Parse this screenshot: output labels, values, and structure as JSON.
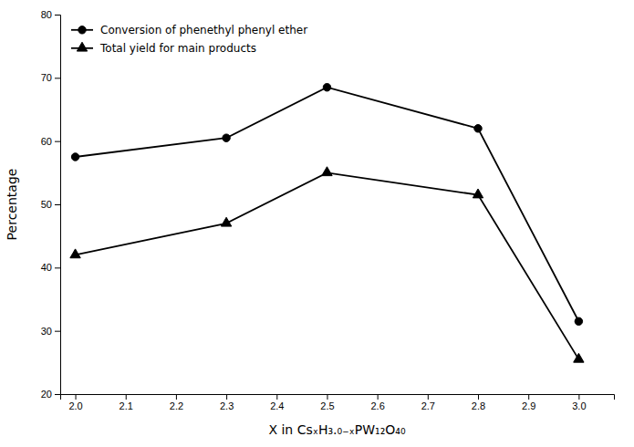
{
  "chart_data": {
    "type": "line",
    "x_label": "X in CsₓH₃.₀₋ₓPW₁₂O₄₀",
    "y_label": "Percentage",
    "x": [
      2.0,
      2.3,
      2.5,
      2.8,
      3.0
    ],
    "series": [
      {
        "name": "Conversion of phenethyl phenyl ether",
        "color": "#000000",
        "marker": "circle",
        "values": [
          57.5,
          60.5,
          68.5,
          62.0,
          31.5
        ]
      },
      {
        "name": "Total yield for main products",
        "color": "#000000",
        "marker": "triangle",
        "values": [
          42.0,
          47.0,
          55.0,
          51.5,
          25.5
        ]
      }
    ],
    "xlim": [
      1.97,
      3.07
    ],
    "xticks": [
      {
        "value": 2.0,
        "label": "2.0"
      },
      2.1,
      2.2,
      2.3,
      2.4,
      2.5,
      2.6,
      2.7,
      2.8,
      2.9,
      {
        "value": 3.0,
        "label": "3.0"
      }
    ],
    "ylim": [
      20,
      80
    ],
    "yticks": [
      20,
      30,
      40,
      50,
      60,
      70,
      80
    ],
    "grid": false,
    "legend": "upper left"
  }
}
